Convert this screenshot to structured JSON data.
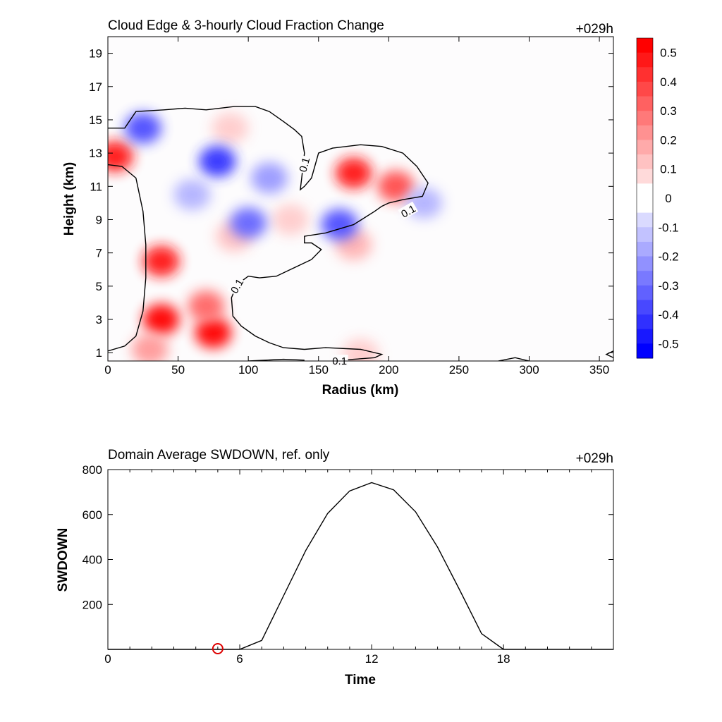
{
  "chart_data": [
    {
      "type": "heatmap",
      "title": "Cloud Edge & 3-hourly Cloud Fraction Change",
      "time_label": "+029h",
      "xlabel": "Radius (km)",
      "ylabel": "Height (km)",
      "xlim": [
        0,
        360
      ],
      "ylim": [
        0.5,
        20
      ],
      "xticks": [
        0,
        50,
        100,
        150,
        200,
        250,
        300,
        350
      ],
      "yticks": [
        1,
        3,
        5,
        7,
        9,
        11,
        13,
        15,
        17,
        19
      ],
      "colorbar": {
        "ticks": [
          "0.5",
          "0.4",
          "0.3",
          "0.2",
          "0.1",
          "0",
          "-0.1",
          "-0.2",
          "-0.3",
          "-0.4",
          "-0.5"
        ],
        "range": [
          -0.55,
          0.55
        ],
        "positive_color": "#ff0000",
        "negative_color": "#0000ff"
      },
      "contour_label": "0.1",
      "features": [
        {
          "kind": "increase",
          "x": 175,
          "y": 11.8,
          "value": 0.45
        },
        {
          "kind": "increase",
          "x": 205,
          "y": 11.0,
          "value": 0.35
        },
        {
          "kind": "increase",
          "x": 5,
          "y": 12.8,
          "value": 0.45
        },
        {
          "kind": "increase",
          "x": 38,
          "y": 6.5,
          "value": 0.45
        },
        {
          "kind": "increase",
          "x": 38,
          "y": 3.0,
          "value": 0.5
        },
        {
          "kind": "increase",
          "x": 75,
          "y": 2.2,
          "value": 0.5
        },
        {
          "kind": "increase",
          "x": 70,
          "y": 3.8,
          "value": 0.3
        },
        {
          "kind": "increase",
          "x": 175,
          "y": 7.5,
          "value": 0.15
        },
        {
          "kind": "increase",
          "x": 90,
          "y": 8.0,
          "value": 0.12
        },
        {
          "kind": "increase",
          "x": 130,
          "y": 9.0,
          "value": 0.1
        },
        {
          "kind": "increase",
          "x": 180,
          "y": 0.9,
          "value": 0.1
        },
        {
          "kind": "increase",
          "x": 30,
          "y": 1.2,
          "value": 0.2
        },
        {
          "kind": "increase",
          "x": 87,
          "y": 14.5,
          "value": 0.1
        },
        {
          "kind": "decrease",
          "x": 78,
          "y": 12.5,
          "value": -0.4
        },
        {
          "kind": "decrease",
          "x": 25,
          "y": 14.5,
          "value": -0.35
        },
        {
          "kind": "decrease",
          "x": 100,
          "y": 8.8,
          "value": -0.3
        },
        {
          "kind": "decrease",
          "x": 165,
          "y": 8.7,
          "value": -0.35
        },
        {
          "kind": "decrease",
          "x": 225,
          "y": 10.0,
          "value": -0.15
        },
        {
          "kind": "decrease",
          "x": 115,
          "y": 11.5,
          "value": -0.2
        },
        {
          "kind": "decrease",
          "x": 60,
          "y": 10.5,
          "value": -0.15
        }
      ],
      "cloud_edge_contours": [
        [
          [
            0,
            14.5
          ],
          [
            12,
            14.5
          ],
          [
            20,
            15.5
          ],
          [
            40,
            15.6
          ],
          [
            55,
            15.7
          ],
          [
            70,
            15.6
          ],
          [
            90,
            15.8
          ],
          [
            105,
            15.8
          ],
          [
            115,
            15.5
          ],
          [
            125,
            14.9
          ],
          [
            133,
            14.4
          ],
          [
            138,
            14.0
          ],
          [
            140,
            13.0
          ],
          [
            138,
            11.5
          ],
          [
            137,
            10.8
          ],
          [
            140,
            11.0
          ],
          [
            145,
            11.5
          ],
          [
            150,
            13.0
          ],
          [
            160,
            13.3
          ],
          [
            180,
            13.5
          ],
          [
            195,
            13.4
          ],
          [
            210,
            13.0
          ],
          [
            220,
            12.2
          ],
          [
            228,
            11.2
          ],
          [
            224,
            10.4
          ],
          [
            210,
            10.2
          ],
          [
            200,
            10.0
          ],
          [
            195,
            9.8
          ],
          [
            190,
            9.5
          ],
          [
            175,
            8.7
          ],
          [
            155,
            8.2
          ],
          [
            140,
            8.0
          ],
          [
            140,
            7.6
          ],
          [
            145,
            7.6
          ],
          [
            152,
            7.2
          ],
          [
            145,
            6.6
          ],
          [
            130,
            6.0
          ],
          [
            120,
            5.6
          ],
          [
            108,
            5.5
          ],
          [
            100,
            5.6
          ],
          [
            92,
            5.1
          ],
          [
            88,
            4.3
          ],
          [
            89,
            3.2
          ],
          [
            95,
            2.6
          ],
          [
            105,
            2.0
          ],
          [
            115,
            1.6
          ],
          [
            125,
            1.3
          ],
          [
            140,
            1.2
          ],
          [
            155,
            1.3
          ],
          [
            180,
            1.2
          ],
          [
            195,
            0.9
          ],
          [
            190,
            0.7
          ],
          [
            175,
            0.6
          ],
          [
            160,
            0.5
          ]
        ],
        [
          [
            0,
            12.3
          ],
          [
            10,
            12.2
          ],
          [
            20,
            11.5
          ],
          [
            25,
            9.5
          ],
          [
            27,
            7.5
          ],
          [
            27,
            5.5
          ],
          [
            25,
            3.5
          ],
          [
            20,
            2.0
          ],
          [
            12,
            1.4
          ],
          [
            0,
            1.1
          ]
        ],
        [
          [
            100,
            0.5
          ],
          [
            125,
            0.6
          ],
          [
            140,
            0.55
          ]
        ],
        [
          [
            278,
            0.5
          ],
          [
            290,
            0.7
          ],
          [
            300,
            0.5
          ]
        ],
        [
          [
            360,
            1.1
          ],
          [
            355,
            0.9
          ],
          [
            360,
            0.7
          ]
        ]
      ],
      "contour_labels": [
        {
          "text": "0.1",
          "x": 140,
          "y": 12.3,
          "angle": -75
        },
        {
          "text": "0.1",
          "x": 214,
          "y": 9.5,
          "angle": -30
        },
        {
          "text": "0.1",
          "x": 92,
          "y": 5.0,
          "angle": -60
        },
        {
          "text": "0.1",
          "x": 165,
          "y": 0.5,
          "angle": 0
        }
      ]
    },
    {
      "type": "line",
      "title": "Domain Average SWDOWN, ref. only",
      "time_label": "+029h",
      "xlabel": "Time",
      "ylabel": "SWDOWN",
      "xlim": [
        0,
        23
      ],
      "ylim": [
        0,
        800
      ],
      "xticks": [
        0,
        6,
        12,
        18
      ],
      "yticks": [
        200,
        400,
        600,
        800
      ],
      "series": [
        {
          "x": [
            0,
            1,
            2,
            3,
            4,
            5,
            6,
            7,
            8,
            9,
            10,
            11,
            12,
            13,
            14,
            15,
            16,
            17,
            18,
            19,
            20,
            21,
            22,
            23
          ],
          "values": [
            0,
            0,
            0,
            0,
            0,
            0,
            0,
            40,
            240,
            440,
            605,
            705,
            742,
            710,
            612,
            455,
            265,
            70,
            0,
            0,
            0,
            0,
            0,
            0
          ],
          "color": "#000000"
        }
      ],
      "marker": {
        "x": 5,
        "y": 0,
        "color": "#dd0000"
      }
    }
  ]
}
